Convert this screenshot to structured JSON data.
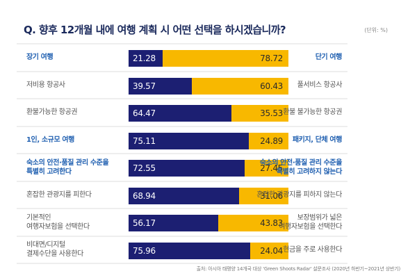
{
  "header": {
    "title": "Q. 향후 12개월 내에 여행 계획 시 어떤 선택을 하시겠습니까?",
    "unit": "(단위: %)"
  },
  "colors": {
    "left_series": "#1c1f72",
    "right_series": "#f8b800",
    "highlight_label": "#1f5fb0",
    "normal_label": "#555555",
    "title": "#1b2a5c"
  },
  "footer": {
    "source": "출처: 아시아 태평양 14개국 대상 'Green Shoots Radar' 설문조사 (2020년 하반기~2021년 상반기)"
  },
  "chart_data": {
    "type": "bar",
    "orientation": "horizontal",
    "stacked": true,
    "normalized_to": 100,
    "title": "Q. 향후 12개월 내에 여행 계획 시 어떤 선택을 하시겠습니까?",
    "unit": "%",
    "xlim": [
      0,
      100
    ],
    "grid": false,
    "legend": "none",
    "rows": [
      {
        "left_label": "장기 여행",
        "right_label": "단기 여행",
        "left_value": 21.28,
        "right_value": 78.72,
        "highlight": true
      },
      {
        "left_label": "저비용 항공사",
        "right_label": "풀서비스 항공사",
        "left_value": 39.57,
        "right_value": 60.43,
        "highlight": false
      },
      {
        "left_label": "환불가능한 항공권",
        "right_label": "환불 불가능한 항공권",
        "left_value": 64.47,
        "right_value": 35.53,
        "highlight": false
      },
      {
        "left_label": "1인, 소규모 여행",
        "right_label": "패키지, 단체 여행",
        "left_value": 75.11,
        "right_value": 24.89,
        "highlight": true
      },
      {
        "left_label": "숙소의 안전·품질 관리 수준을\n특별히 고려한다",
        "right_label": "숙소의 안전·품질 관리 수준을\n특별히 고려하지 않는다",
        "left_value": 72.55,
        "right_value": 27.45,
        "highlight": true
      },
      {
        "left_label": "혼잡한 관광지를 피한다",
        "right_label": "혼잡한 관광지를 피하지 않는다",
        "left_value": 68.94,
        "right_value": 31.06,
        "highlight": false
      },
      {
        "left_label": "기본적인\n여행자보험을 선택한다",
        "right_label": "보장범위가 넓은\n여행자보험을 선택한다",
        "left_value": 56.17,
        "right_value": 43.83,
        "highlight": false
      },
      {
        "left_label": "비대면/디지털\n결제수단을 사용한다",
        "right_label": "현금을 주로 사용한다",
        "left_value": 75.96,
        "right_value": 24.04,
        "highlight": false
      }
    ]
  }
}
